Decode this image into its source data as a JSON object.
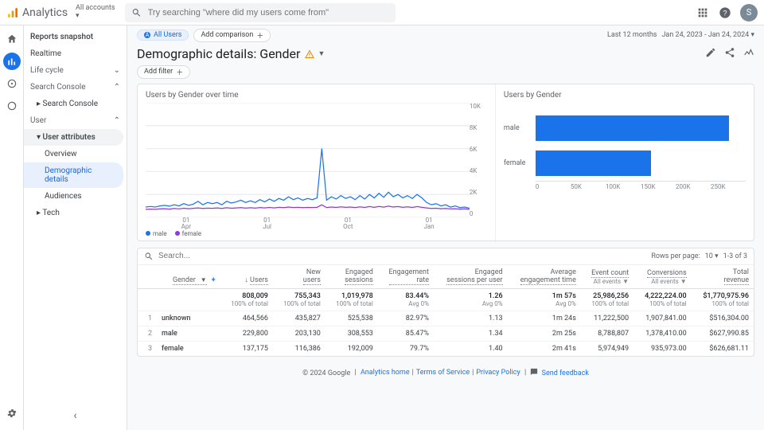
{
  "brand": {
    "name": "Analytics"
  },
  "account": {
    "label": "All accounts",
    "caret": "▾"
  },
  "search": {
    "placeholder": "Try searching \"where did my users come from\""
  },
  "avatar": {
    "initial": "S",
    "bg": "#7b8a97"
  },
  "dateRange": {
    "prefix": "Last 12 months",
    "range": "Jan 24, 2023 - Jan 24, 2024"
  },
  "segments": {
    "allUsers": "All Users",
    "addComparison": "Add comparison"
  },
  "page": {
    "title": "Demographic details: Gender",
    "addFilter": "Add filter"
  },
  "sidenav": {
    "snapshot": "Reports snapshot",
    "realtime": "Realtime",
    "lifeCycle": "Life cycle",
    "searchConsole": "Search Console",
    "searchConsoleSub": "Search Console",
    "user": "User",
    "userAttributes": "User attributes",
    "overview": "Overview",
    "demographic": "Demographic details",
    "audiences": "Audiences",
    "tech": "Tech"
  },
  "lineChart": {
    "title": "Users by Gender over time",
    "yTicks": [
      "10K",
      "8K",
      "6K",
      "4K",
      "2K",
      "0"
    ],
    "xTicks": [
      "01\nApr",
      "01\nJul",
      "01\nOct",
      "01\nJan"
    ],
    "series": [
      {
        "name": "male",
        "color": "#1a73e8",
        "points": [
          900,
          950,
          900,
          1000,
          1050,
          980,
          1100,
          1000,
          1200,
          1050,
          1150,
          1400,
          1100,
          1300,
          1200,
          1300,
          1100,
          1400,
          1250,
          1350,
          1500,
          1300,
          1450,
          1300,
          1550,
          1350,
          1600,
          1400,
          1650,
          1500,
          1800,
          1550,
          1700,
          1500,
          1650,
          1550,
          1700,
          6000,
          1500,
          1800,
          1600,
          1900,
          1650,
          1800,
          1550,
          1900,
          1600,
          2000,
          1700,
          2100,
          1750,
          2200,
          1800,
          2000,
          1700,
          1900,
          1650,
          2000,
          1700,
          1300,
          1100,
          1200,
          1000,
          1100,
          900,
          1000,
          850,
          900,
          800
        ]
      },
      {
        "name": "female",
        "color": "#9334e6",
        "points": [
          700,
          720,
          700,
          740,
          760,
          720,
          780,
          740,
          800,
          760,
          790,
          820,
          780,
          810,
          790,
          820,
          780,
          840,
          800,
          820,
          850,
          810,
          840,
          810,
          860,
          820,
          870,
          830,
          880,
          850,
          900,
          860,
          880,
          850,
          870,
          860,
          880,
          1100,
          860,
          900,
          870,
          920,
          880,
          900,
          860,
          920,
          870,
          940,
          880,
          960,
          890,
          980,
          900,
          940,
          880,
          920,
          870,
          940,
          880,
          820,
          780,
          800,
          760,
          780,
          740,
          760,
          720,
          740,
          700
        ]
      }
    ],
    "yMax": 10000,
    "legend": [
      {
        "label": "male",
        "color": "#1a73e8"
      },
      {
        "label": "female",
        "color": "#9334e6"
      }
    ]
  },
  "barChart": {
    "title": "Users by Gender",
    "xTicks": [
      "0",
      "50K",
      "100K",
      "150K",
      "200K",
      "250K"
    ],
    "xMax": 250000,
    "bars": [
      {
        "label": "male",
        "value": 229800,
        "color": "#1a73e8"
      },
      {
        "label": "female",
        "value": 137175,
        "color": "#1a73e8"
      }
    ]
  },
  "table": {
    "searchPlaceholder": "Search...",
    "rowsPerPageLabel": "Rows per page:",
    "rowsPerPage": "10",
    "pageInfo": "1-3 of 3",
    "dimHeader": "Gender",
    "columns": [
      {
        "line1": "Users",
        "sort": true
      },
      {
        "line1": "New",
        "line2": "users"
      },
      {
        "line1": "Engaged",
        "line2": "sessions"
      },
      {
        "line1": "Engagement",
        "line2": "rate"
      },
      {
        "line1": "Engaged",
        "line2": "sessions per user"
      },
      {
        "line1": "Average",
        "line2": "engagement time"
      },
      {
        "line1": "Event count",
        "sub": "All events",
        "dropdown": true
      },
      {
        "line1": "Conversions",
        "sub": "All events",
        "dropdown": true
      },
      {
        "line1": "Total",
        "line2": "revenue"
      }
    ],
    "totals": {
      "values": [
        "808,009",
        "755,343",
        "1,019,978",
        "83.44%",
        "1.26",
        "1m 57s",
        "25,986,256",
        "4,222,224.00",
        "$1,770,975.96"
      ],
      "subs": [
        "100% of total",
        "100% of total",
        "100% of total",
        "Avg 0%",
        "Avg 0%",
        "Avg 0%",
        "100% of total",
        "100% of total",
        "100% of total"
      ]
    },
    "rows": [
      {
        "idx": "1",
        "dim": "unknown",
        "cells": [
          "464,566",
          "435,827",
          "525,538",
          "82.97%",
          "1.13",
          "1m 24s",
          "11,222,500",
          "1,907,841.00",
          "$516,304.00"
        ]
      },
      {
        "idx": "2",
        "dim": "male",
        "cells": [
          "229,800",
          "203,130",
          "308,553",
          "85.47%",
          "1.34",
          "2m 25s",
          "8,788,807",
          "1,378,410.00",
          "$627,990.85"
        ]
      },
      {
        "idx": "3",
        "dim": "female",
        "cells": [
          "137,175",
          "116,386",
          "192,009",
          "79.7%",
          "1.40",
          "2m 41s",
          "5,974,949",
          "935,973.00",
          "$626,681.11"
        ]
      }
    ]
  },
  "footer": {
    "copyright": "© 2024 Google",
    "links": [
      "Analytics home",
      "Terms of Service",
      "Privacy Policy"
    ],
    "feedback": "Send feedback"
  }
}
